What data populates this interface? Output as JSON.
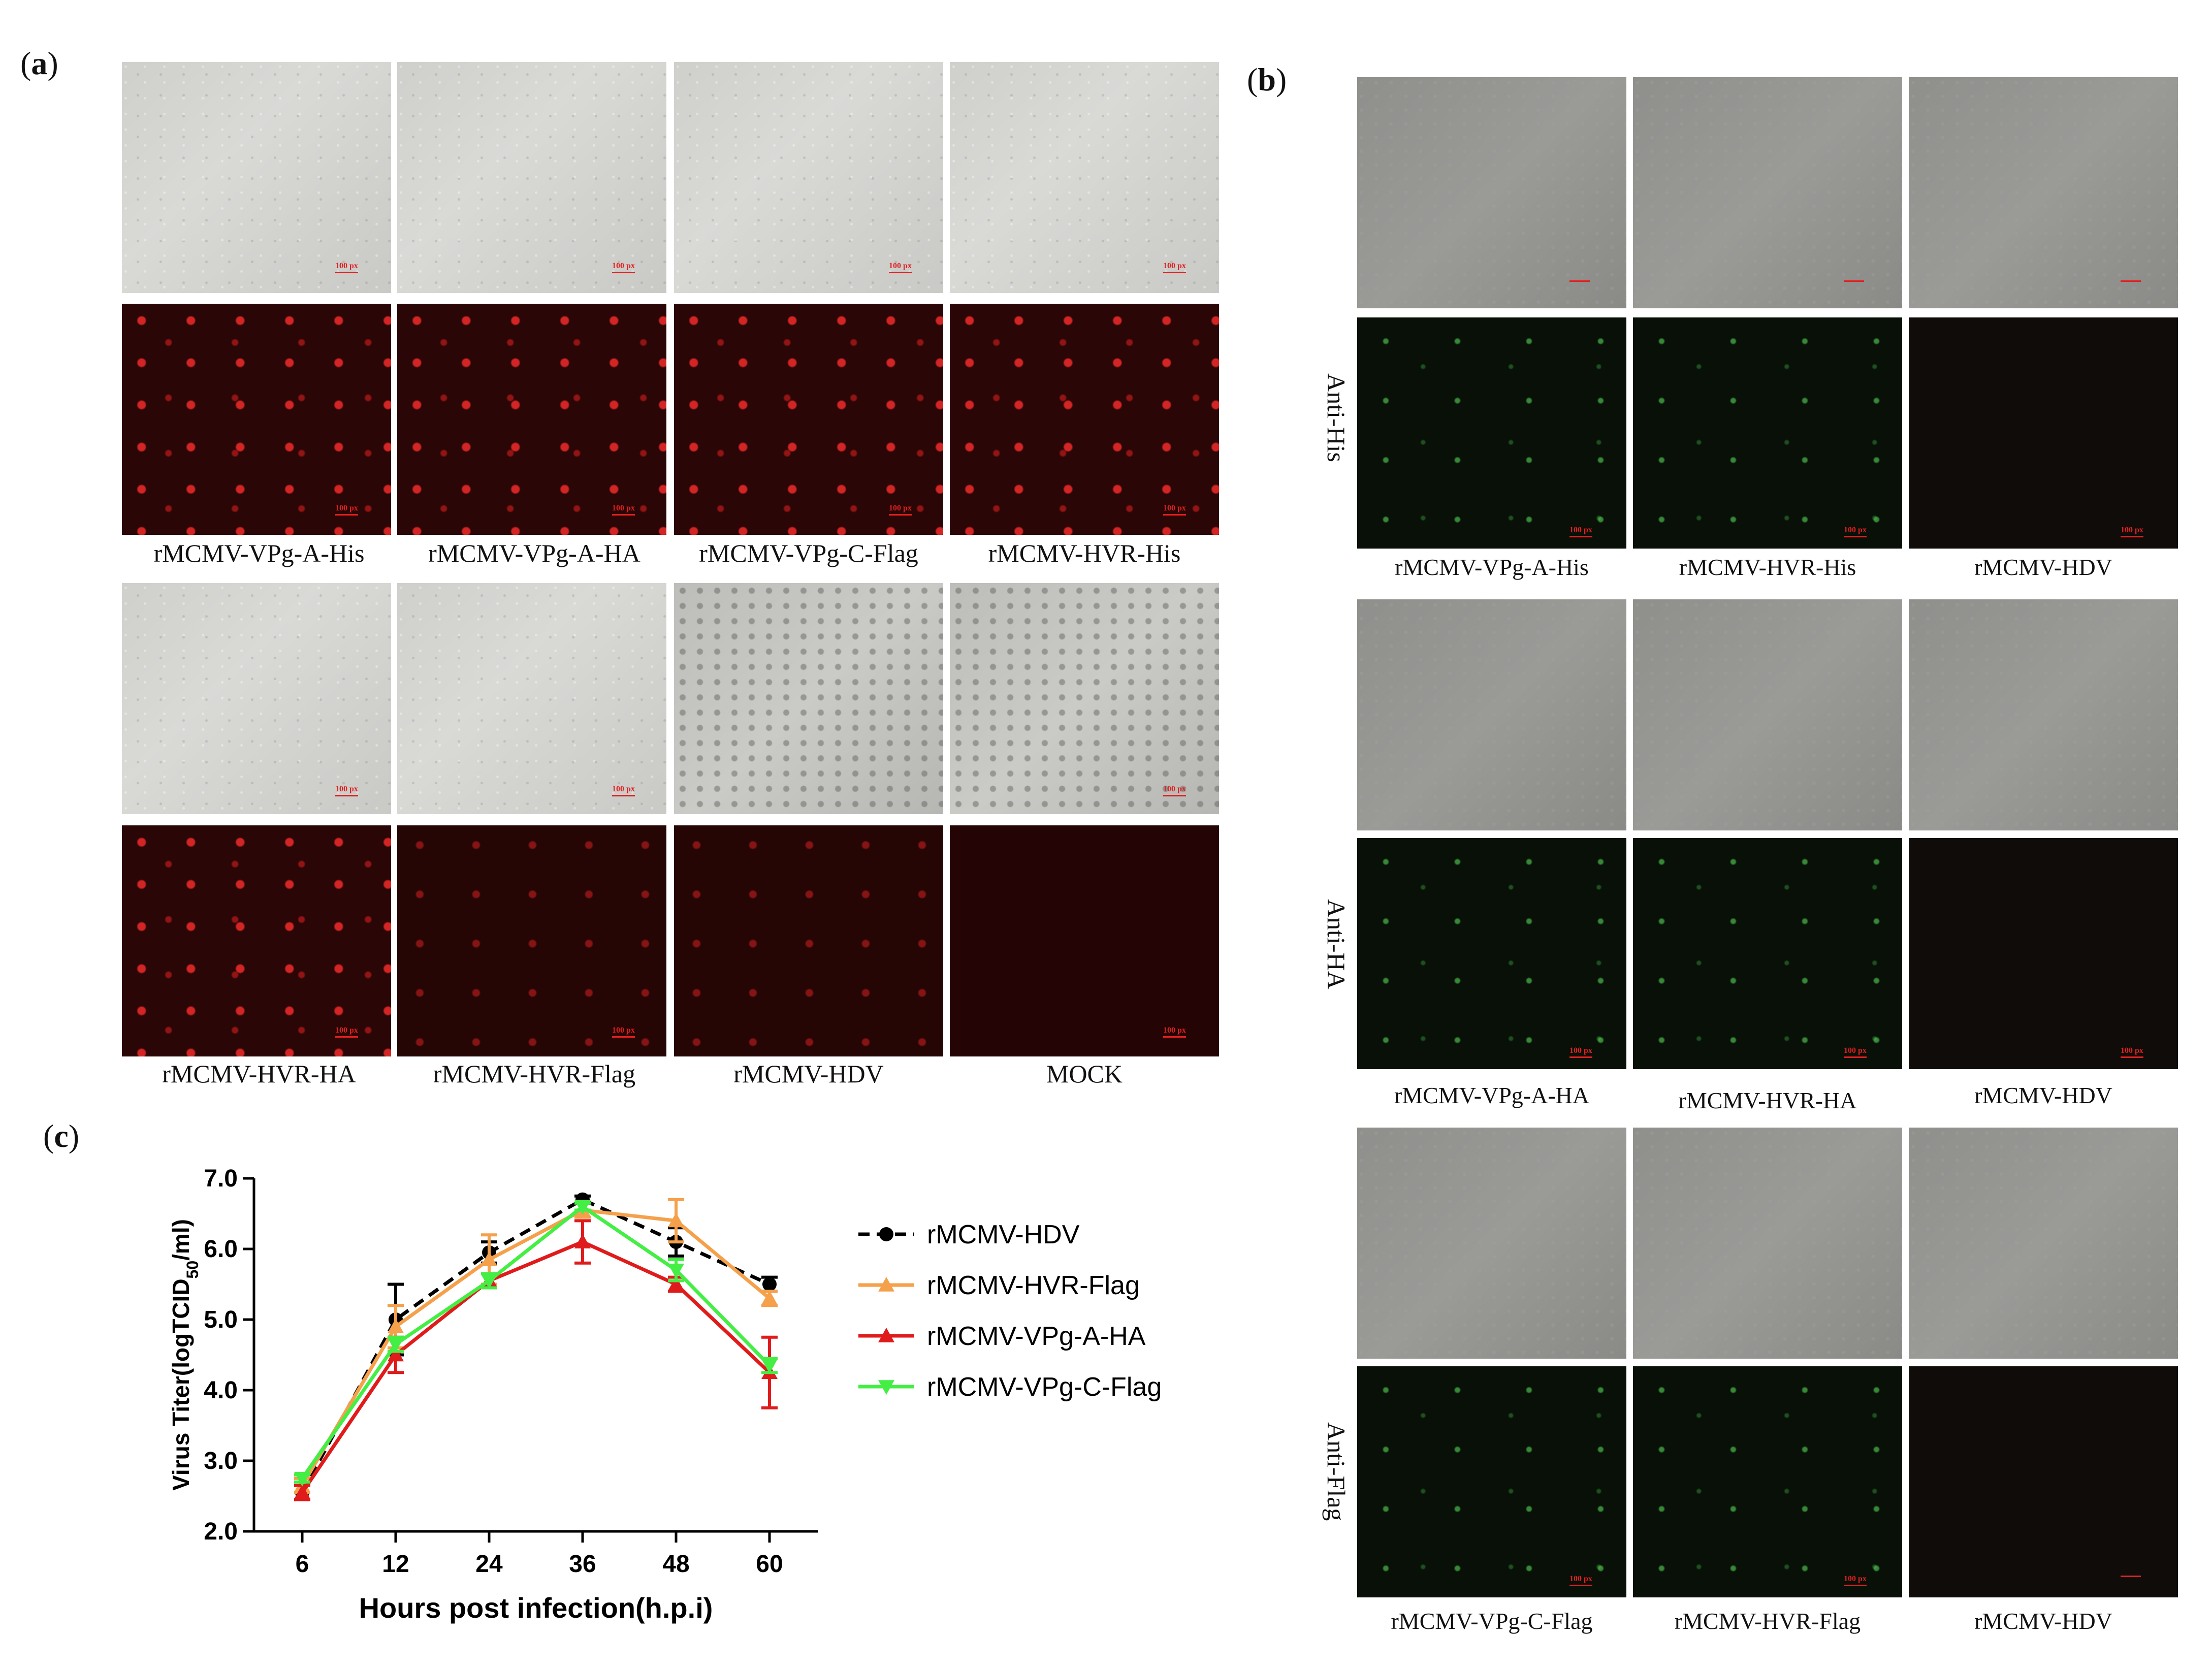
{
  "panel_a": {
    "letter": "a",
    "row1_labels": [
      "rMCMV-VPg-A-His",
      "rMCMV-VPg-A-HA",
      "rMCMV-VPg-C-Flag",
      "rMCMV-HVR-His"
    ],
    "row2_labels": [
      "rMCMV-HVR-HA",
      "rMCMV-HVR-Flag",
      "rMCMV-HDV",
      "MOCK"
    ],
    "scale_bar": "100 px"
  },
  "panel_b": {
    "letter": "b",
    "groups": [
      {
        "row_label": "Anti-His",
        "labels": [
          "rMCMV-VPg-A-His",
          "rMCMV-HVR-His",
          "rMCMV-HDV"
        ]
      },
      {
        "row_label": "Anti-HA",
        "labels": [
          "rMCMV-VPg-A-HA",
          "rMCMV-HVR-HA",
          "rMCMV-HDV"
        ]
      },
      {
        "row_label": "Anti-Flag",
        "labels": [
          "rMCMV-VPg-C-Flag",
          "rMCMV-HVR-Flag",
          "rMCMV-HDV"
        ]
      }
    ],
    "scale_bar": "100 px"
  },
  "panel_c": {
    "letter": "c"
  },
  "chart_data": {
    "type": "line",
    "x": [
      6,
      12,
      24,
      36,
      48,
      60
    ],
    "categories": [
      "6",
      "12",
      "24",
      "36",
      "48",
      "60"
    ],
    "xlabel": "Hours post infection(h.p.i)",
    "ylabel": "Virus Titer(logTCID50/ml)",
    "ylabel_main": "Virus Titer(logTCID",
    "ylabel_sub": "50",
    "ylabel_tail": "/ml)",
    "ylim": [
      2.0,
      7.0
    ],
    "yticks": [
      "2.0",
      "3.0",
      "4.0",
      "5.0",
      "6.0",
      "7.0"
    ],
    "ytick_values": [
      2.0,
      3.0,
      4.0,
      5.0,
      6.0,
      7.0
    ],
    "legend_position": "right",
    "series": [
      {
        "name": "rMCMV-HDV",
        "color": "#000000",
        "dashed": true,
        "marker": "circle",
        "values": [
          2.55,
          5.0,
          5.95,
          6.7,
          6.1,
          5.5
        ],
        "errors": [
          0.1,
          0.5,
          0.15,
          0.05,
          0.2,
          0.1
        ]
      },
      {
        "name": "rMCMV-HVR-Flag",
        "color": "#f5a04a",
        "dashed": false,
        "marker": "triangle-up",
        "values": [
          2.65,
          4.9,
          5.85,
          6.55,
          6.4,
          5.3
        ],
        "errors": [
          0.1,
          0.3,
          0.35,
          0.1,
          0.3,
          0.1
        ]
      },
      {
        "name": "rMCMV-VPg-A-HA",
        "color": "#e01b1b",
        "dashed": false,
        "marker": "triangle-up",
        "values": [
          2.55,
          4.5,
          5.55,
          6.1,
          5.5,
          4.25
        ],
        "errors": [
          0.1,
          0.25,
          0.1,
          0.3,
          0.1,
          0.5
        ]
      },
      {
        "name": "rMCMV-VPg-C-Flag",
        "color": "#44ee44",
        "dashed": false,
        "marker": "triangle-down",
        "values": [
          2.75,
          4.65,
          5.55,
          6.6,
          5.7,
          4.35
        ],
        "errors": [
          0.05,
          0.1,
          0.1,
          0.05,
          0.15,
          0.1
        ]
      }
    ]
  }
}
